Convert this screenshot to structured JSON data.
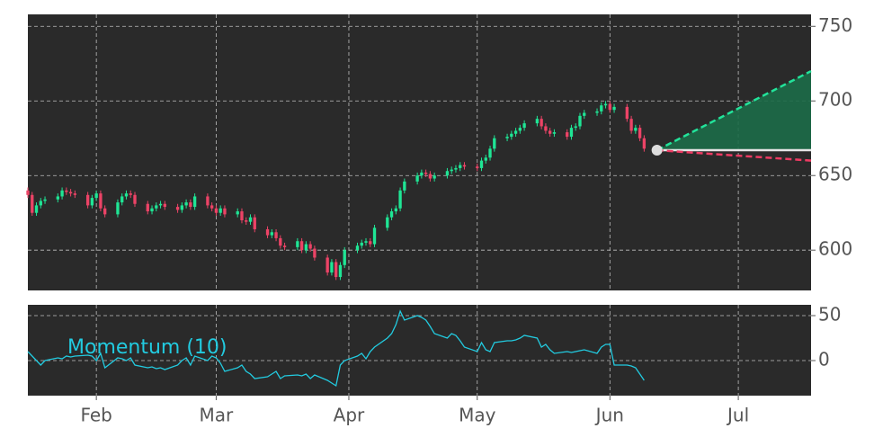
{
  "chart_data": [
    {
      "type": "candlestick",
      "up_color": "#1fe595",
      "down_color": "#ec4366",
      "grid": true,
      "xlim": [
        0,
        183
      ],
      "ylim": [
        573,
        758
      ],
      "yticks": [
        600,
        650,
        700,
        750
      ],
      "x": [
        0,
        1,
        2,
        3,
        4,
        7,
        8,
        9,
        10,
        11,
        14,
        15,
        16,
        17,
        18,
        21,
        22,
        23,
        24,
        25,
        28,
        29,
        30,
        31,
        32,
        35,
        36,
        37,
        38,
        39,
        42,
        43,
        44,
        45,
        46,
        49,
        50,
        51,
        52,
        53,
        56,
        57,
        58,
        59,
        60,
        63,
        64,
        65,
        66,
        67,
        70,
        71,
        72,
        73,
        74,
        77,
        78,
        79,
        80,
        81,
        84,
        85,
        86,
        87,
        88,
        91,
        92,
        93,
        94,
        95,
        98,
        99,
        100,
        101,
        102,
        105,
        106,
        107,
        108,
        109,
        112,
        113,
        114,
        115,
        116,
        119,
        120,
        121,
        122,
        123,
        126,
        127,
        128,
        129,
        130,
        133,
        134,
        135,
        136,
        137,
        140,
        141,
        142,
        143,
        144
      ],
      "open": [
        640,
        637,
        625,
        630,
        633,
        634,
        636,
        640,
        639,
        638,
        637,
        630,
        635,
        638,
        628,
        624,
        632,
        636,
        638,
        637,
        631,
        626,
        628,
        630,
        631,
        629,
        627,
        630,
        632,
        629,
        636,
        630,
        628,
        625,
        628,
        624,
        626,
        620,
        619,
        622,
        614,
        610,
        612,
        608,
        603,
        602,
        606,
        600,
        604,
        601,
        595,
        585,
        592,
        582,
        590,
        600,
        603,
        605,
        606,
        604,
        615,
        622,
        626,
        628,
        640,
        646,
        650,
        652,
        651,
        648,
        650,
        653,
        654,
        655,
        657,
        656,
        655,
        660,
        662,
        668,
        675,
        676,
        678,
        680,
        682,
        685,
        688,
        683,
        680,
        678,
        679,
        676,
        682,
        683,
        690,
        692,
        693,
        697,
        698,
        694,
        696,
        688,
        680,
        682,
        675
      ],
      "high": [
        642,
        639,
        632,
        635,
        636,
        638,
        642,
        642,
        641,
        640,
        639,
        637,
        640,
        640,
        630,
        634,
        638,
        640,
        640,
        639,
        633,
        630,
        632,
        633,
        633,
        631,
        632,
        634,
        634,
        638,
        638,
        632,
        630,
        630,
        630,
        628,
        628,
        622,
        624,
        624,
        616,
        614,
        614,
        610,
        605,
        608,
        608,
        606,
        606,
        603,
        597,
        594,
        594,
        592,
        602,
        605,
        607,
        608,
        608,
        617,
        624,
        628,
        630,
        642,
        648,
        652,
        654,
        654,
        653,
        652,
        655,
        656,
        657,
        659,
        659,
        658,
        662,
        664,
        670,
        677,
        678,
        680,
        682,
        684,
        687,
        690,
        690,
        685,
        682,
        681,
        681,
        684,
        685,
        692,
        694,
        695,
        699,
        700,
        700,
        698,
        698,
        690,
        684,
        684,
        677
      ],
      "low": [
        635,
        623,
        623,
        628,
        631,
        632,
        634,
        637,
        636,
        635,
        628,
        628,
        633,
        626,
        622,
        622,
        630,
        634,
        635,
        629,
        624,
        624,
        626,
        628,
        627,
        625,
        625,
        628,
        627,
        627,
        628,
        626,
        623,
        623,
        622,
        622,
        618,
        617,
        617,
        612,
        608,
        608,
        606,
        601,
        600,
        600,
        598,
        598,
        599,
        593,
        583,
        583,
        580,
        580,
        588,
        598,
        601,
        603,
        602,
        602,
        613,
        620,
        624,
        626,
        638,
        644,
        648,
        649,
        646,
        646,
        648,
        651,
        652,
        653,
        654,
        653,
        653,
        658,
        660,
        666,
        673,
        674,
        676,
        678,
        680,
        683,
        681,
        678,
        676,
        676,
        674,
        674,
        680,
        681,
        688,
        690,
        691,
        695,
        692,
        692,
        686,
        678,
        678,
        673,
        666
      ],
      "close": [
        637,
        625,
        630,
        633,
        634,
        636,
        640,
        639,
        638,
        637,
        630,
        635,
        638,
        628,
        624,
        632,
        636,
        638,
        637,
        631,
        626,
        628,
        630,
        631,
        629,
        627,
        630,
        632,
        629,
        636,
        630,
        628,
        625,
        628,
        624,
        626,
        620,
        619,
        622,
        614,
        610,
        612,
        608,
        603,
        602,
        606,
        600,
        604,
        601,
        595,
        585,
        592,
        582,
        590,
        600,
        603,
        605,
        606,
        604,
        615,
        622,
        626,
        628,
        640,
        646,
        650,
        652,
        651,
        648,
        650,
        653,
        654,
        655,
        657,
        656,
        655,
        660,
        662,
        668,
        675,
        676,
        678,
        680,
        682,
        685,
        688,
        683,
        680,
        678,
        679,
        676,
        682,
        683,
        690,
        692,
        693,
        697,
        698,
        694,
        696,
        688,
        680,
        682,
        675,
        668
      ],
      "forecast": {
        "x": [
          147,
          183
        ],
        "upper": [
          667,
          720
        ],
        "center": [
          667,
          667
        ],
        "lower": [
          667,
          660
        ],
        "upper_color": "#22e39a",
        "center_color": "#e6e6e6",
        "lower_color": "#ee3b63",
        "fill_color": "#1c6b48"
      }
    },
    {
      "type": "line",
      "grid": true,
      "xlim": [
        0,
        183
      ],
      "ylim": [
        -39,
        62
      ],
      "yticks": [
        0,
        50
      ],
      "xticks": [
        {
          "value": 16,
          "label": "Feb"
        },
        {
          "value": 44,
          "label": "Mar"
        },
        {
          "value": 75,
          "label": "Apr"
        },
        {
          "value": 105,
          "label": "May"
        },
        {
          "value": 136,
          "label": "Jun"
        },
        {
          "value": 166,
          "label": "Jul"
        }
      ],
      "x": [
        0,
        1,
        2,
        3,
        4,
        7,
        8,
        9,
        10,
        11,
        14,
        15,
        16,
        17,
        18,
        21,
        22,
        23,
        24,
        25,
        28,
        29,
        30,
        31,
        32,
        35,
        36,
        37,
        38,
        39,
        42,
        43,
        44,
        45,
        46,
        49,
        50,
        51,
        52,
        53,
        56,
        57,
        58,
        59,
        60,
        63,
        64,
        65,
        66,
        67,
        70,
        71,
        72,
        73,
        74,
        77,
        78,
        79,
        80,
        81,
        84,
        85,
        86,
        87,
        88,
        91,
        92,
        93,
        94,
        95,
        98,
        99,
        100,
        101,
        102,
        105,
        106,
        107,
        108,
        109,
        112,
        113,
        114,
        115,
        116,
        119,
        120,
        121,
        122,
        123,
        126,
        127,
        128,
        129,
        130,
        133,
        134,
        135,
        136,
        137,
        140,
        141,
        142,
        143,
        144
      ],
      "series": [
        {
          "name": "Momentum (10)",
          "color": "#22cbe0",
          "values": [
            10,
            5,
            0,
            -5,
            0,
            3,
            2,
            5,
            4,
            5,
            6,
            5,
            0,
            8,
            -8,
            3,
            2,
            0,
            3,
            -5,
            -8,
            -7,
            -9,
            -8,
            -10,
            -5,
            0,
            3,
            -5,
            5,
            0,
            5,
            3,
            -3,
            -12,
            -8,
            -5,
            -12,
            -15,
            -20,
            -18,
            -15,
            -12,
            -20,
            -17,
            -16,
            -17,
            -15,
            -20,
            -16,
            -22,
            -25,
            -28,
            -5,
            0,
            5,
            8,
            2,
            10,
            15,
            25,
            30,
            40,
            55,
            45,
            50,
            48,
            45,
            38,
            30,
            25,
            30,
            28,
            22,
            15,
            10,
            20,
            12,
            10,
            20,
            22,
            22,
            23,
            25,
            28,
            25,
            15,
            18,
            12,
            8,
            10,
            9,
            10,
            11,
            12,
            8,
            15,
            18,
            18,
            -5,
            -5,
            -6,
            -8,
            -15,
            -22
          ]
        }
      ]
    }
  ]
}
